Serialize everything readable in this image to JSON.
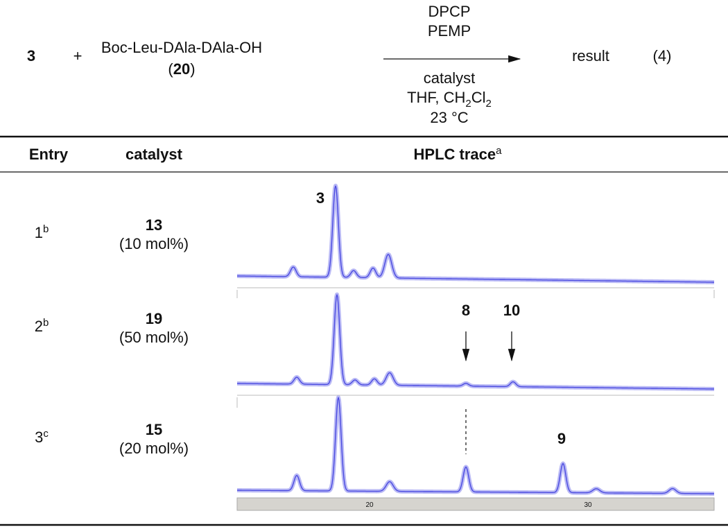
{
  "scheme": {
    "reactant_1": "3",
    "plus": "+",
    "reactant_2": "Boc-Leu-DAla-DAla-OH",
    "reactant_2_label": {
      "open": "(",
      "number": "20",
      "close": ")"
    },
    "reagents_above": [
      "DPCP",
      "PEMP"
    ],
    "conditions_below": {
      "catalyst": "catalyst",
      "solvent": [
        "THF, CH",
        "2",
        "Cl",
        "2"
      ],
      "temperature": "23 °C"
    },
    "product": "result",
    "equation_number": "(4)"
  },
  "table": {
    "headers": {
      "entry": "Entry",
      "catalyst": "catalyst",
      "trace": {
        "text": "HPLC trace",
        "note": "a"
      }
    },
    "rows": [
      {
        "entry": "1",
        "note": "b",
        "catalyst": "13",
        "loading": "(10 mol%)",
        "peak_labels": [
          "3"
        ]
      },
      {
        "entry": "2",
        "note": "b",
        "catalyst": "19",
        "loading": "(50 mol%)",
        "peak_labels": [
          "8",
          "10"
        ]
      },
      {
        "entry": "3",
        "note": "c",
        "catalyst": "15",
        "loading": "(20 mol%)",
        "peak_labels": [
          "9"
        ]
      }
    ],
    "trace_axis_labels": [
      "20",
      "30"
    ]
  }
}
